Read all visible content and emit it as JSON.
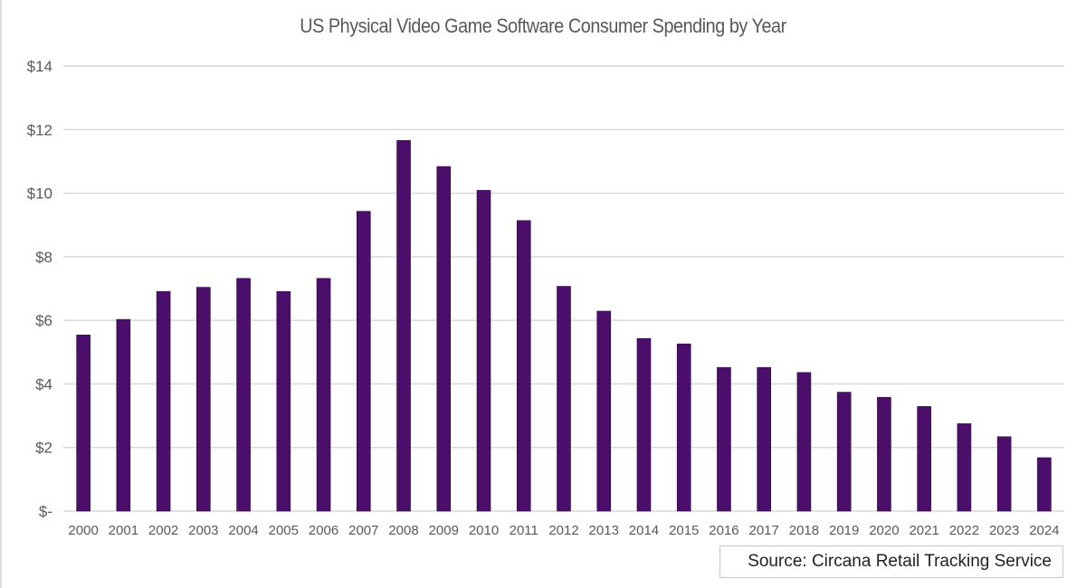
{
  "chart_data": {
    "type": "bar",
    "title": "US Physical Video Game Software Consumer Spending by Year",
    "categories": [
      "2000",
      "2001",
      "2002",
      "2003",
      "2004",
      "2005",
      "2006",
      "2007",
      "2008",
      "2009",
      "2010",
      "2011",
      "2012",
      "2013",
      "2014",
      "2015",
      "2016",
      "2017",
      "2018",
      "2019",
      "2020",
      "2021",
      "2022",
      "2023",
      "2024"
    ],
    "values": [
      5.54,
      6.03,
      6.91,
      7.04,
      7.32,
      6.91,
      7.32,
      9.43,
      11.66,
      10.84,
      10.09,
      9.14,
      7.07,
      6.29,
      5.43,
      5.26,
      4.52,
      4.52,
      4.36,
      3.74,
      3.58,
      3.29,
      2.75,
      2.34,
      1.68
    ],
    "ylim": [
      0,
      14
    ],
    "yticks": [
      0,
      2,
      4,
      6,
      8,
      10,
      12,
      14
    ],
    "ytick_labels": [
      "$-",
      "$2",
      "$4",
      "$6",
      "$8",
      "$10",
      "$12",
      "$14"
    ],
    "xlabel": "",
    "ylabel": "",
    "grid": true,
    "bar_color": "#4b0f6b",
    "source": "Source: Circana Retail Tracking Service"
  }
}
